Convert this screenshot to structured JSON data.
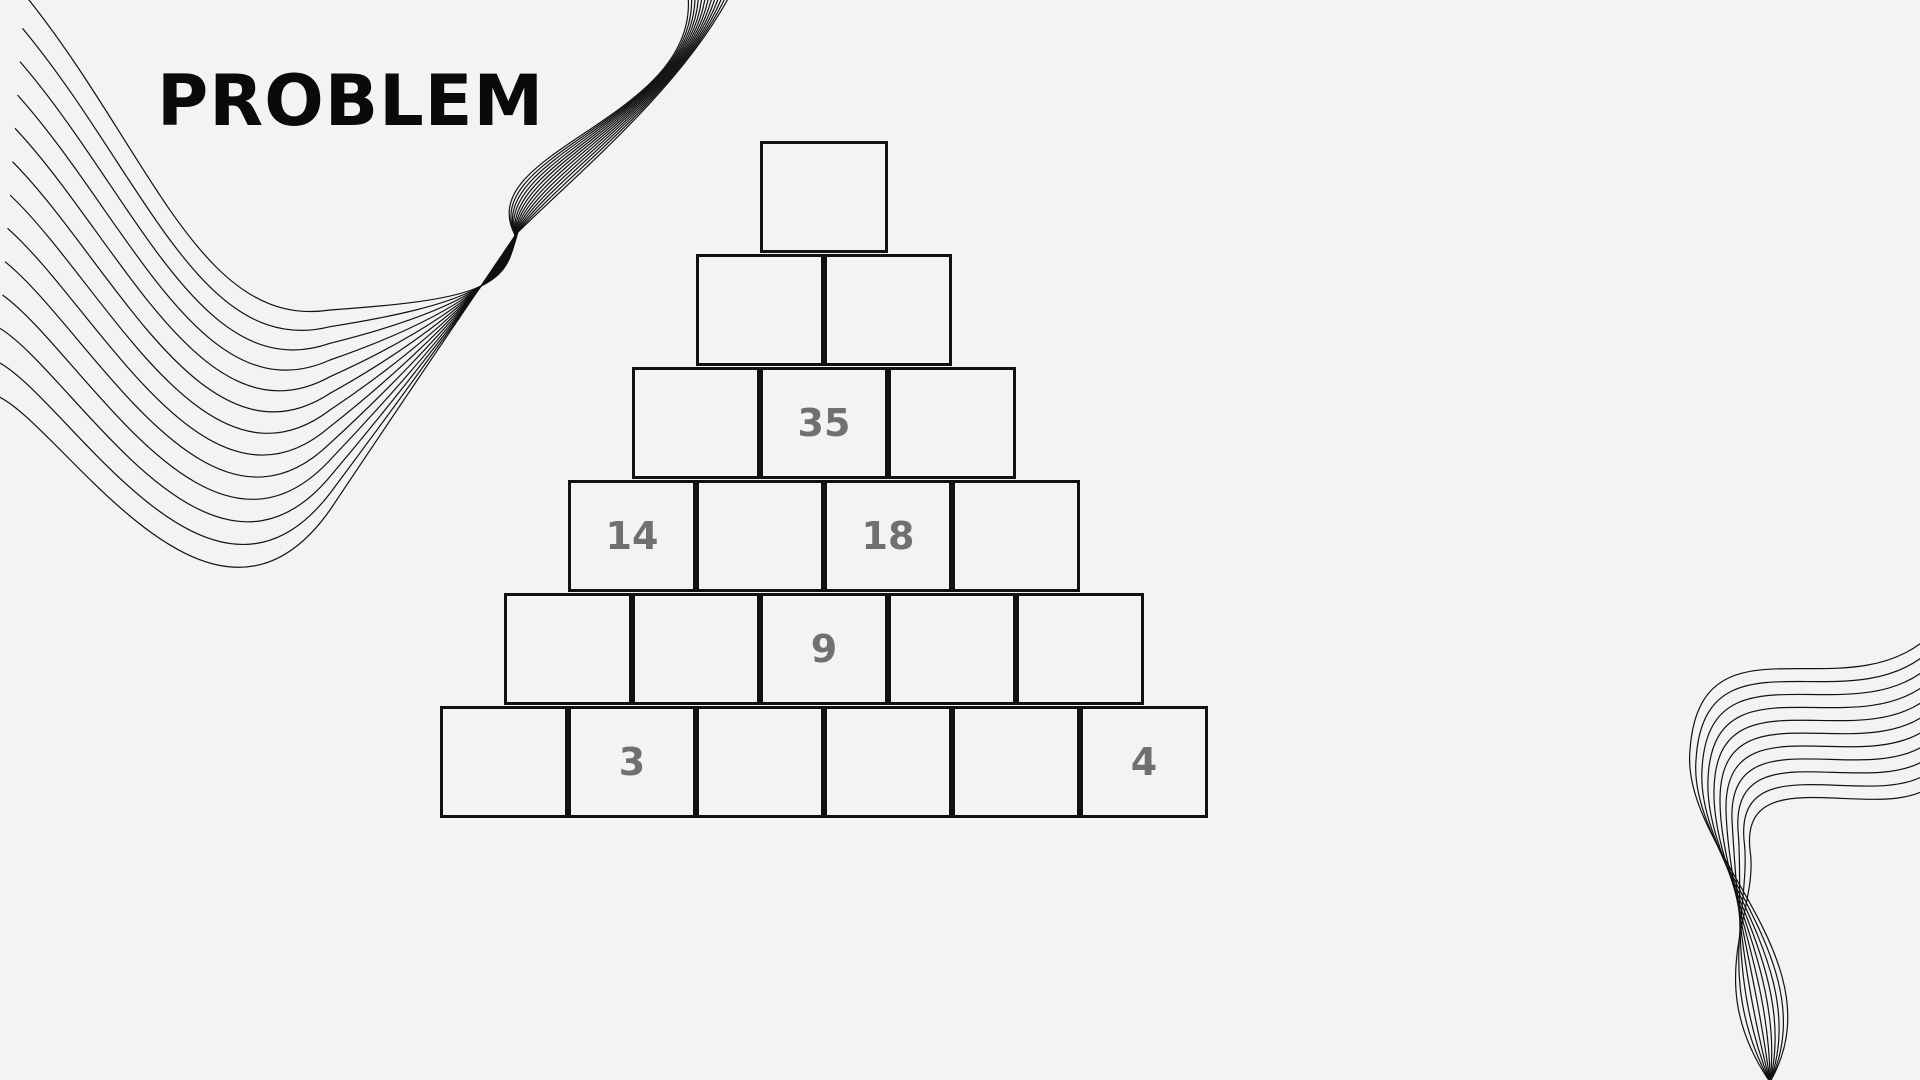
{
  "title": "PROBLEM",
  "pyramid": {
    "rows": [
      [
        ""
      ],
      [
        "",
        ""
      ],
      [
        "",
        "35",
        ""
      ],
      [
        "14",
        "",
        "18",
        ""
      ],
      [
        "",
        "",
        "9",
        "",
        ""
      ],
      [
        "",
        "3",
        "",
        "",
        "",
        "4"
      ]
    ]
  },
  "colors": {
    "background": "#f2f3f5",
    "cell_border": "#111111",
    "number_text": "#707070",
    "title_text": "#0a0a0a"
  }
}
